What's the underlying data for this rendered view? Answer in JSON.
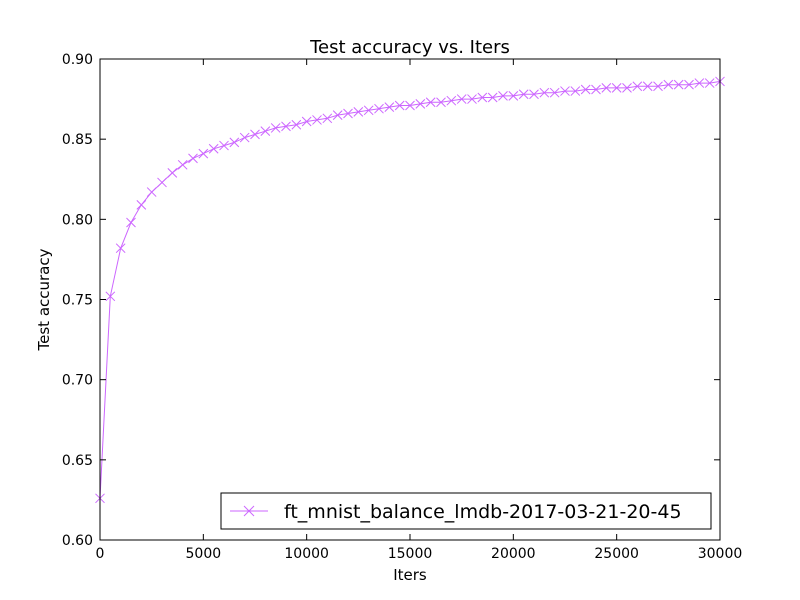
{
  "chart_data": {
    "type": "line",
    "title": "Test accuracy  vs. Iters",
    "xlabel": "Iters",
    "ylabel": "Test accuracy",
    "xlim": [
      0,
      30000
    ],
    "ylim": [
      0.6,
      0.9
    ],
    "xticks": [
      0,
      5000,
      10000,
      15000,
      20000,
      25000,
      30000
    ],
    "xtick_labels": [
      "0",
      "5000",
      "10000",
      "15000",
      "20000",
      "25000",
      "30000"
    ],
    "yticks": [
      0.6,
      0.65,
      0.7,
      0.75,
      0.8,
      0.85,
      0.9
    ],
    "ytick_labels": [
      "0.60",
      "0.65",
      "0.70",
      "0.75",
      "0.80",
      "0.85",
      "0.90"
    ],
    "grid": false,
    "legend_position": "lower-right",
    "series": [
      {
        "name": "ft_mnist_balance_lmdb-2017-03-21-20-45",
        "color": "#cc66ff",
        "marker": "x",
        "x": [
          0,
          500,
          1000,
          1500,
          2000,
          2500,
          3000,
          3500,
          4000,
          4500,
          5000,
          5500,
          6000,
          6500,
          7000,
          7500,
          8000,
          8500,
          9000,
          9500,
          10000,
          10500,
          11000,
          11500,
          12000,
          12500,
          13000,
          13500,
          14000,
          14500,
          15000,
          15500,
          16000,
          16500,
          17000,
          17500,
          18000,
          18500,
          19000,
          19500,
          20000,
          20500,
          21000,
          21500,
          22000,
          22500,
          23000,
          23500,
          24000,
          24500,
          25000,
          25500,
          26000,
          26500,
          27000,
          27500,
          28000,
          28500,
          29000,
          29500,
          30000
        ],
        "y": [
          0.626,
          0.752,
          0.782,
          0.798,
          0.809,
          0.817,
          0.823,
          0.829,
          0.834,
          0.838,
          0.841,
          0.844,
          0.846,
          0.848,
          0.851,
          0.853,
          0.855,
          0.857,
          0.858,
          0.859,
          0.861,
          0.862,
          0.863,
          0.865,
          0.866,
          0.867,
          0.868,
          0.869,
          0.87,
          0.871,
          0.871,
          0.872,
          0.873,
          0.873,
          0.874,
          0.875,
          0.875,
          0.876,
          0.876,
          0.877,
          0.877,
          0.878,
          0.878,
          0.879,
          0.879,
          0.88,
          0.88,
          0.881,
          0.881,
          0.882,
          0.882,
          0.882,
          0.883,
          0.883,
          0.883,
          0.884,
          0.884,
          0.884,
          0.885,
          0.885,
          0.886
        ]
      }
    ]
  }
}
